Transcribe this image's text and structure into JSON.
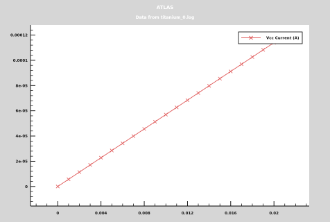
{
  "app_title": "ATLAS",
  "subtitle": "Data from titanium_0.log",
  "colors": {
    "frame_background": "#d6d6d6",
    "plot_background": "#ffffff",
    "series_line": "#e05a5a",
    "axis": "#000000"
  },
  "chart_data": {
    "type": "line",
    "title": "Data from titanium_0.log",
    "xlabel": "",
    "ylabel": "",
    "xlim": [
      -0.00252,
      0.02326
    ],
    "ylim": [
      -1.55e-05,
      0.000128
    ],
    "xticks": [
      {
        "value": 0,
        "label": "0"
      },
      {
        "value": 0.004,
        "label": "0.004"
      },
      {
        "value": 0.008,
        "label": "0.008"
      },
      {
        "value": 0.012,
        "label": "0.012"
      },
      {
        "value": 0.016,
        "label": "0.016"
      },
      {
        "value": 0.02,
        "label": "0.02"
      }
    ],
    "yticks": [
      {
        "value": 0,
        "label": "0"
      },
      {
        "value": 2e-05,
        "label": "2e-05"
      },
      {
        "value": 4e-05,
        "label": "4e-05"
      },
      {
        "value": 6e-05,
        "label": "6e-05"
      },
      {
        "value": 8e-05,
        "label": "8e-05"
      },
      {
        "value": 0.0001,
        "label": "0.0001"
      },
      {
        "value": 0.00012,
        "label": "0.00012"
      }
    ],
    "grid": false,
    "legend_position": "top-right",
    "series": [
      {
        "name": "Vcc Current (A)",
        "marker": "x",
        "color": "#e05a5a",
        "x": [
          0,
          0.001,
          0.002,
          0.003,
          0.004,
          0.005,
          0.006,
          0.007,
          0.008,
          0.009,
          0.01,
          0.011,
          0.012,
          0.013,
          0.014,
          0.015,
          0.016,
          0.017,
          0.018,
          0.019,
          0.02
        ],
        "y": [
          0,
          5.7e-06,
          1.14e-05,
          1.71e-05,
          2.28e-05,
          2.85e-05,
          3.42e-05,
          3.99e-05,
          4.56e-05,
          5.13e-05,
          5.7e-05,
          6.27e-05,
          6.84e-05,
          7.41e-05,
          7.98e-05,
          8.55e-05,
          9.12e-05,
          9.69e-05,
          0.0001026,
          0.0001083,
          0.000114
        ]
      }
    ]
  }
}
